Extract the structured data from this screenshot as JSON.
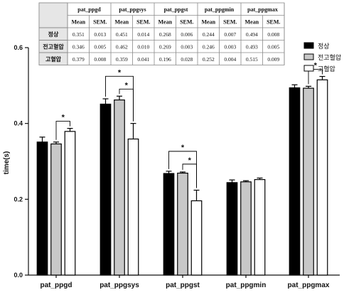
{
  "chart_data": {
    "type": "bar",
    "ylabel": "time(s)",
    "ylim": [
      0,
      0.6
    ],
    "yticks": [
      "0.0",
      "0.2",
      "0.4",
      "0.6"
    ],
    "categories": [
      "pat_ppgd",
      "pat_ppgsys",
      "pat_ppgst",
      "pat_ppgmin",
      "pat_ppgmax"
    ],
    "series": [
      {
        "name": "정상",
        "color": "#000000",
        "values": [
          0.351,
          0.451,
          0.268,
          0.244,
          0.494
        ],
        "sem": [
          0.013,
          0.014,
          0.006,
          0.007,
          0.008
        ]
      },
      {
        "name": "전고혈압",
        "color": "#c8c8c8",
        "values": [
          0.346,
          0.462,
          0.269,
          0.246,
          0.493
        ],
        "sem": [
          0.005,
          0.01,
          0.003,
          0.003,
          0.005
        ]
      },
      {
        "name": "고혈압",
        "color": "#ffffff",
        "values": [
          0.379,
          0.359,
          0.196,
          0.252,
          0.515
        ],
        "sem": [
          0.008,
          0.041,
          0.028,
          0.004,
          0.009
        ]
      }
    ],
    "legend_position": "top-right",
    "grid": false,
    "significance": [
      {
        "category": "pat_ppgd",
        "between": [
          "전고혈압",
          "고혈압"
        ],
        "label": "*"
      },
      {
        "category": "pat_ppgsys",
        "between": [
          "정상",
          "고혈압"
        ],
        "label": "*"
      },
      {
        "category": "pat_ppgsys",
        "between": [
          "전고혈압",
          "고혈압"
        ],
        "label": "*"
      },
      {
        "category": "pat_ppgst",
        "between": [
          "정상",
          "고혈압"
        ],
        "label": "*"
      },
      {
        "category": "pat_ppgst",
        "between": [
          "전고혈압",
          "고혈압"
        ],
        "label": "*"
      },
      {
        "category": "pat_ppgmax",
        "between": [
          "전고혈압",
          "고혈압"
        ],
        "label": "*"
      }
    ],
    "table": {
      "headers": [
        "pat_ppgd",
        "pat_ppgsys",
        "pat_ppgst",
        "pat_ppgmin",
        "pat_ppgmax"
      ],
      "subheaders": [
        "Mean",
        "SEM."
      ],
      "rows": [
        {
          "label": "정상",
          "cells": [
            "0.351",
            "0.013",
            "0.451",
            "0.014",
            "0.268",
            "0.006",
            "0.244",
            "0.007",
            "0.494",
            "0.008"
          ]
        },
        {
          "label": "전고혈압",
          "cells": [
            "0.346",
            "0.005",
            "0.462",
            "0.010",
            "0.269",
            "0.003",
            "0.246",
            "0.003",
            "0.493",
            "0.005"
          ]
        },
        {
          "label": "고혈압",
          "cells": [
            "0.379",
            "0.008",
            "0.359",
            "0.041",
            "0.196",
            "0.028",
            "0.252",
            "0.004",
            "0.515",
            "0.009"
          ]
        }
      ]
    }
  }
}
